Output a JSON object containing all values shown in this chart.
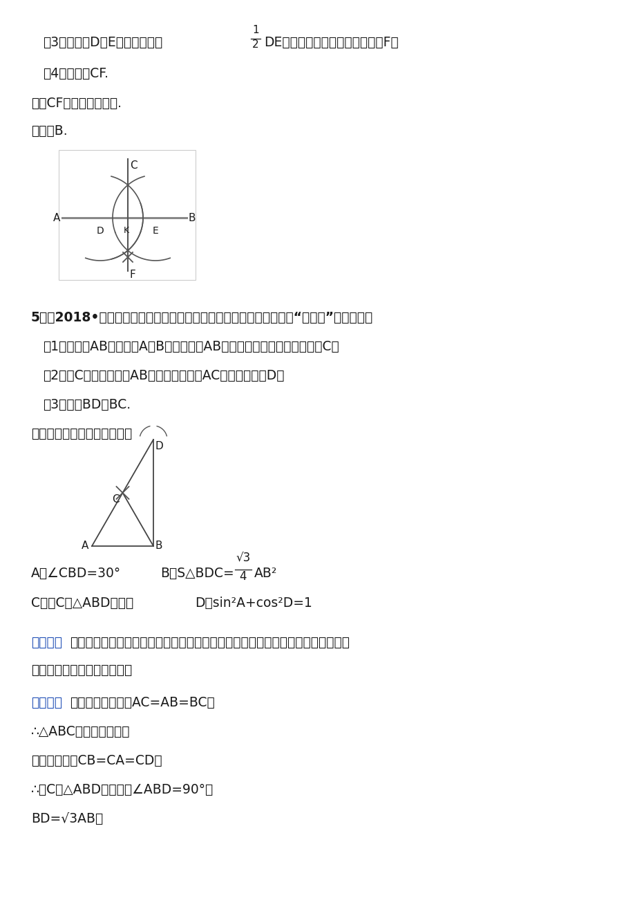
{
  "bg_color": "#ffffff",
  "text_color": "#000000",
  "blue_color": "#1e4db5",
  "fig_width": 9.2,
  "fig_height": 13.02,
  "line1_pre": "（3）分别以D和E为圆心，大于",
  "line1_post": "DE的长为半径作弧，两弧交于点F，",
  "line2": "（4）作直线CF.",
  "line3": "直线CF就是所求的垂线.",
  "line4": "故选：B.",
  "q5_title": "5．（2018•潍坊）如图，木工师傅在板材边角处作直角时，往往使用“三弧法”，其作法是",
  "q5_1": "（1）作线段AB，分别以A，B为圆心，以AB长为半径作弧，两弧的交点为C；",
  "q5_2": "（2）以C为圆心，仍以AB长为半径作弧交AC的延长线于点D；",
  "q5_3": "（3）连接BD，BC.",
  "q5_q": "下列说法不正确的是（　　）",
  "ans_A": "A．∠CBD=30°",
  "ans_B_pre": "B．S△BDC=",
  "ans_B_post": "AB²",
  "ans_C": "C．点C是△ABD的外心",
  "ans_D": "D．sin²A+cos²D=1",
  "analysis_tag": "《分析》",
  "analysis_tag2": "【分析】",
  "analysis_text": "根据等边三角形的判定方法，直角三角形的判定方法以及等边三角形的性质，直角",
  "analysis_text2": "三角形的性质一一判断即可；",
  "solution_tag": "【解答】",
  "solution_text": "解：由作图可知：AC=AB=BC，",
  "sol2": "∴△ABC是等边三角形，",
  "sol3": "由作图可知：CB=CA=CD，",
  "sol4": "∴点C是△ABD的外心，∠ABD=90°，",
  "sol5": "BD=√3AB，"
}
